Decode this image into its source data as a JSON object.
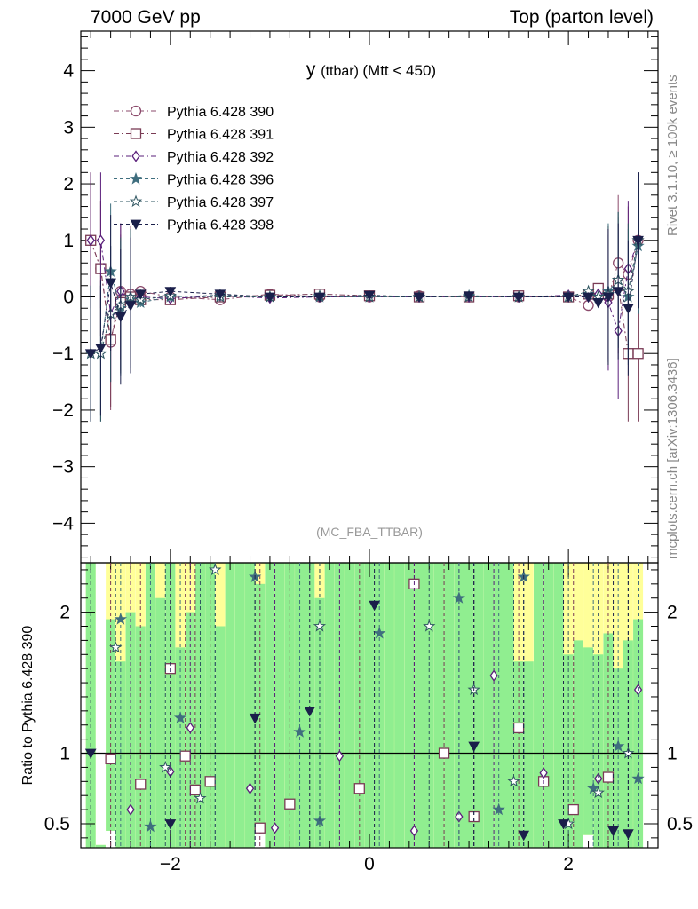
{
  "header": {
    "left": "7000 GeV pp",
    "right": "Top (parton level)"
  },
  "side_labels": {
    "rivet": "Rivet 3.1.10, ≥ 100k events",
    "mcplots": "mcplots.cern.ch [arXiv:1306.3436]"
  },
  "chart_data": [
    {
      "type": "line",
      "panel": "main",
      "title": "y (ttbar) (Mtt < 450)",
      "title_main": "y",
      "title_sub": "(ttbar)",
      "title_tail": "(Mtt < 450)",
      "analysis_tag": "(MC_FBA_TTBAR)",
      "xlim": [
        -2.9,
        2.9
      ],
      "ylim": [
        -4.7,
        4.7
      ],
      "yticks": [
        -4,
        -3,
        -2,
        -1,
        0,
        1,
        2,
        3,
        4
      ],
      "xticks": [
        -2,
        0,
        2
      ],
      "legend_position": "top-left",
      "series": [
        {
          "name": "Pythia 6.428 390",
          "color": "#8b4a6b",
          "marker": "circle-open",
          "x": [
            -2.8,
            -2.7,
            -2.6,
            -2.5,
            -2.4,
            -2.3,
            -2.0,
            -1.5,
            -1.0,
            -0.5,
            0.0,
            0.5,
            1.0,
            1.5,
            2.0,
            2.2,
            2.3,
            2.4,
            2.5,
            2.6,
            2.7
          ],
          "y": [
            1.0,
            0.5,
            -0.8,
            0.1,
            0.05,
            0.1,
            0.0,
            -0.05,
            0.05,
            0.0,
            0.0,
            0.02,
            0.0,
            0.0,
            0.0,
            -0.15,
            0.1,
            0.0,
            0.6,
            0.4,
            1.0
          ]
        },
        {
          "name": "Pythia 6.428 391",
          "color": "#7a3b55",
          "marker": "square-open",
          "x": [
            -2.8,
            -2.7,
            -2.6,
            -2.5,
            -2.4,
            -2.3,
            -2.0,
            -1.5,
            -1.0,
            -0.5,
            0.0,
            0.5,
            1.0,
            1.5,
            2.0,
            2.2,
            2.3,
            2.4,
            2.5,
            2.6,
            2.7
          ],
          "y": [
            1.0,
            0.5,
            -0.75,
            -0.1,
            0.0,
            -0.05,
            -0.05,
            0.0,
            0.03,
            0.05,
            0.02,
            0.0,
            0.0,
            0.02,
            0.0,
            0.05,
            0.15,
            0.05,
            0.2,
            -1.0,
            -1.0
          ]
        },
        {
          "name": "Pythia 6.428 392",
          "color": "#5a1f7a",
          "marker": "diamond-open",
          "x": [
            -2.8,
            -2.7,
            -2.6,
            -2.5,
            -2.4,
            -2.3,
            -2.0,
            -1.5,
            -1.0,
            -0.5,
            0.0,
            0.5,
            1.0,
            1.5,
            2.0,
            2.2,
            2.3,
            2.4,
            2.5,
            2.6,
            2.7
          ],
          "y": [
            1.0,
            1.0,
            -0.3,
            0.1,
            -0.05,
            0.0,
            -0.03,
            0.02,
            -0.02,
            0.0,
            0.0,
            0.0,
            0.0,
            0.0,
            0.03,
            0.0,
            0.05,
            -0.1,
            -0.6,
            0.5,
            1.0
          ]
        },
        {
          "name": "Pythia 6.428 396",
          "color": "#3f6e7e",
          "marker": "star-filled",
          "x": [
            -2.8,
            -2.7,
            -2.6,
            -2.5,
            -2.4,
            -2.3,
            -2.0,
            -1.5,
            -1.0,
            -0.5,
            0.0,
            0.5,
            1.0,
            1.5,
            2.0,
            2.2,
            2.3,
            2.4,
            2.5,
            2.6,
            2.7
          ],
          "y": [
            -1.0,
            -1.0,
            0.45,
            -0.2,
            -0.05,
            -0.1,
            0.0,
            0.03,
            0.0,
            0.0,
            0.0,
            0.0,
            0.02,
            0.0,
            0.0,
            0.05,
            0.0,
            0.1,
            0.3,
            0.0,
            0.9
          ]
        },
        {
          "name": "Pythia 6.428 397",
          "color": "#2e5560",
          "marker": "star-open",
          "x": [
            -2.8,
            -2.7,
            -2.6,
            -2.5,
            -2.4,
            -2.3,
            -2.0,
            -1.5,
            -1.0,
            -0.5,
            0.0,
            0.5,
            1.0,
            1.5,
            2.0,
            2.2,
            2.3,
            2.4,
            2.5,
            2.6,
            2.7
          ],
          "y": [
            -1.0,
            -1.0,
            -0.3,
            -0.15,
            0.0,
            -0.05,
            0.02,
            0.0,
            0.0,
            0.02,
            0.0,
            0.0,
            0.0,
            0.0,
            0.0,
            0.1,
            0.0,
            0.05,
            0.3,
            0.1,
            1.0
          ]
        },
        {
          "name": "Pythia 6.428 398",
          "color": "#1a1f4a",
          "marker": "triangle-down-filled",
          "x": [
            -2.8,
            -2.7,
            -2.6,
            -2.5,
            -2.4,
            -2.3,
            -2.0,
            -1.5,
            -1.0,
            -0.5,
            0.0,
            0.5,
            1.0,
            1.5,
            2.0,
            2.2,
            2.3,
            2.4,
            2.5,
            2.6,
            2.7
          ],
          "y": [
            -1.0,
            -0.9,
            0.25,
            -0.35,
            -0.15,
            0.05,
            0.1,
            0.05,
            0.0,
            0.0,
            0.03,
            0.0,
            0.02,
            0.0,
            0.0,
            0.0,
            -0.1,
            0.0,
            0.1,
            -0.2,
            1.0
          ]
        }
      ]
    },
    {
      "type": "line",
      "panel": "ratio",
      "ylabel": "Ratio to Pythia 6.428 390",
      "xlim": [
        -2.9,
        2.9
      ],
      "ylim": [
        0.33,
        2.35
      ],
      "yticks": [
        0.5,
        1,
        2
      ],
      "xticks": [
        -2,
        0,
        2
      ],
      "reference_line": 1,
      "band_colors": {
        "inner": "#90ee90",
        "outer": "#ffff99"
      },
      "band_x": [
        -2.8,
        -2.7,
        -2.6,
        -2.5,
        -2.4,
        -2.3,
        -2.2,
        -2.1,
        -2.0,
        -1.9,
        -1.8,
        -1.7,
        -1.6,
        -1.5,
        -1.4,
        -1.3,
        -1.2,
        -1.1,
        -1.0,
        -0.9,
        -0.8,
        -0.7,
        -0.6,
        -0.5,
        -0.4,
        -0.3,
        -0.2,
        -0.1,
        0.0,
        0.1,
        0.2,
        0.3,
        0.4,
        0.5,
        0.6,
        0.7,
        0.8,
        0.9,
        1.0,
        1.1,
        1.2,
        1.3,
        1.4,
        1.5,
        1.6,
        1.7,
        1.8,
        1.9,
        2.0,
        2.1,
        2.2,
        2.3,
        2.4,
        2.5,
        2.6,
        2.7
      ],
      "band_inner_hi": [
        2.35,
        0.35,
        1.95,
        1.65,
        2.0,
        1.9,
        2.35,
        2.1,
        2.35,
        1.75,
        2.0,
        2.35,
        2.35,
        1.9,
        2.35,
        2.35,
        2.35,
        2.2,
        2.35,
        2.35,
        2.35,
        2.35,
        2.35,
        2.1,
        2.35,
        2.35,
        2.35,
        2.35,
        2.35,
        2.35,
        2.35,
        2.35,
        2.35,
        2.35,
        2.35,
        2.35,
        2.35,
        2.35,
        2.35,
        2.35,
        2.35,
        2.35,
        2.35,
        1.65,
        1.65,
        2.35,
        2.35,
        2.35,
        1.7,
        1.8,
        1.75,
        1.7,
        1.85,
        1.6,
        1.8,
        1.95
      ],
      "band_outer_hi": [
        2.35,
        0.35,
        2.35,
        2.35,
        2.35,
        2.35,
        2.35,
        2.35,
        2.35,
        2.35,
        2.35,
        2.35,
        2.35,
        2.35,
        2.35,
        2.35,
        2.35,
        2.35,
        2.35,
        2.35,
        2.35,
        2.35,
        2.35,
        2.35,
        2.35,
        2.35,
        2.35,
        2.35,
        2.35,
        2.35,
        2.35,
        2.35,
        2.35,
        2.35,
        2.35,
        2.35,
        2.35,
        2.35,
        2.35,
        2.35,
        2.35,
        2.35,
        2.35,
        2.35,
        2.35,
        2.35,
        2.35,
        2.35,
        2.35,
        2.35,
        2.35,
        2.35,
        2.35,
        2.35,
        2.35,
        2.35
      ],
      "band_lo": [
        0.33,
        0.33,
        0.45,
        0.33,
        0.33,
        0.33,
        0.33,
        0.33,
        0.33,
        0.33,
        0.33,
        0.33,
        0.33,
        0.33,
        0.33,
        0.33,
        0.33,
        0.45,
        0.33,
        0.33,
        0.33,
        0.33,
        0.33,
        0.33,
        0.33,
        0.33,
        0.33,
        0.33,
        0.33,
        0.33,
        0.33,
        0.33,
        0.33,
        0.33,
        0.33,
        0.33,
        0.33,
        0.33,
        0.33,
        0.33,
        0.33,
        0.33,
        0.33,
        0.33,
        0.33,
        0.33,
        0.33,
        0.33,
        0.33,
        0.33,
        0.42,
        0.33,
        0.33,
        0.33,
        0.33,
        0.33
      ],
      "series": [
        {
          "name": "Pythia 6.428 391",
          "color": "#7a3b55",
          "marker": "square-open",
          "x": [
            -2.6,
            -2.3,
            -2.0,
            -1.85,
            -1.75,
            -1.6,
            -1.1,
            -0.8,
            -0.1,
            0.45,
            0.75,
            1.05,
            1.5,
            1.75,
            2.05,
            2.4
          ],
          "y": [
            0.96,
            0.78,
            1.6,
            0.98,
            0.74,
            0.8,
            0.47,
            0.64,
            0.75,
            2.2,
            1.0,
            0.55,
            1.18,
            0.8,
            0.6,
            0.83
          ]
        },
        {
          "name": "Pythia 6.428 392",
          "color": "#5a1f7a",
          "marker": "diamond-open",
          "x": [
            -2.4,
            -2.0,
            -1.8,
            -1.2,
            -0.95,
            -0.3,
            0.45,
            0.9,
            1.25,
            1.75,
            2.3,
            2.7
          ],
          "y": [
            0.6,
            0.87,
            1.18,
            0.75,
            0.47,
            0.98,
            0.45,
            0.55,
            1.55,
            0.86,
            0.82,
            1.45
          ]
        },
        {
          "name": "Pythia 6.428 396",
          "color": "#3f6e7e",
          "marker": "star-filled",
          "x": [
            -2.5,
            -2.2,
            -1.9,
            -1.55,
            -1.15,
            -0.7,
            -0.5,
            0.1,
            0.9,
            1.3,
            1.55,
            2.25,
            2.5,
            2.7
          ],
          "y": [
            1.95,
            0.48,
            1.25,
            2.3,
            2.25,
            1.15,
            0.52,
            1.85,
            2.1,
            0.6,
            2.25,
            0.75,
            1.05,
            0.82
          ]
        },
        {
          "name": "Pythia 6.428 397",
          "color": "#2e5560",
          "marker": "star-open",
          "x": [
            -2.55,
            -2.05,
            -1.7,
            -1.55,
            -0.5,
            0.6,
            1.05,
            1.45,
            2.0,
            2.3,
            2.6
          ],
          "y": [
            1.75,
            0.9,
            0.68,
            2.3,
            1.9,
            1.9,
            1.45,
            0.8,
            0.5,
            0.72,
            1.0
          ]
        },
        {
          "name": "Pythia 6.428 398",
          "color": "#1a1f4a",
          "marker": "triangle-down-filled",
          "x": [
            -2.8,
            -2.0,
            -1.15,
            -0.6,
            0.05,
            1.05,
            1.55,
            1.95,
            2.45,
            2.6
          ],
          "y": [
            1.0,
            0.5,
            1.25,
            1.3,
            2.05,
            1.05,
            0.42,
            0.5,
            0.45,
            0.43
          ]
        }
      ]
    }
  ]
}
